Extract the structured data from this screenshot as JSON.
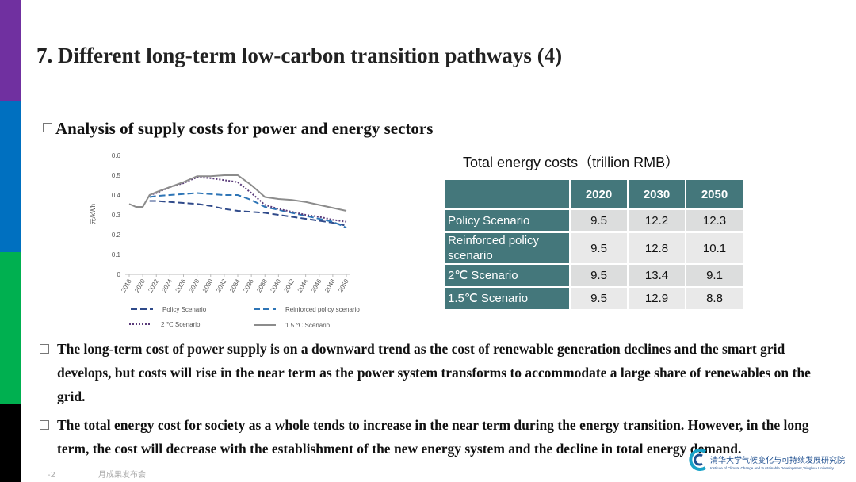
{
  "header": {
    "title": "7. Different long-term low-carbon transition pathways (4)",
    "subtitle": "Analysis of supply costs for power and energy sectors"
  },
  "chart_data": {
    "type": "line",
    "y_label": "元/kWh",
    "x": [
      2018,
      2019,
      2020,
      2021,
      2022,
      2024,
      2026,
      2028,
      2030,
      2032,
      2034,
      2036,
      2038,
      2040,
      2042,
      2044,
      2046,
      2048,
      2050
    ],
    "xlim": [
      2018,
      2050
    ],
    "xticks": [
      2018,
      2020,
      2022,
      2024,
      2026,
      2028,
      2030,
      2032,
      2034,
      2036,
      2038,
      2040,
      2042,
      2044,
      2046,
      2048,
      2050
    ],
    "ylim": [
      0,
      0.6
    ],
    "yticks": [
      0,
      0.1,
      0.2,
      0.3,
      0.4,
      0.5,
      0.6
    ],
    "series": [
      {
        "name": "Policy Scenario",
        "color": "#2f4a8a",
        "style": "dashed",
        "values": [
          null,
          null,
          null,
          0.37,
          0.37,
          0.365,
          0.36,
          0.355,
          0.345,
          0.33,
          0.32,
          0.315,
          0.31,
          0.3,
          0.29,
          0.28,
          0.27,
          0.26,
          0.245
        ]
      },
      {
        "name": "Reinforced policy scenario",
        "color": "#2e75b6",
        "style": "dashed",
        "values": [
          null,
          null,
          null,
          0.39,
          0.395,
          0.4,
          0.405,
          0.41,
          0.405,
          0.4,
          0.4,
          0.375,
          0.34,
          0.325,
          0.31,
          0.295,
          0.28,
          0.265,
          0.235
        ]
      },
      {
        "name": "2 ℃ Scenario",
        "color": "#5a3b7a",
        "style": "dotted",
        "values": [
          null,
          null,
          null,
          0.4,
          0.41,
          0.44,
          0.46,
          0.49,
          0.485,
          0.475,
          0.465,
          0.41,
          0.35,
          0.33,
          0.315,
          0.3,
          0.29,
          0.275,
          0.265
        ]
      },
      {
        "name": "1.5 ℃ Scenario",
        "color": "#8c8c8c",
        "style": "solid",
        "values": [
          0.355,
          0.34,
          0.34,
          0.4,
          0.415,
          0.44,
          0.465,
          0.495,
          0.495,
          0.5,
          0.5,
          0.45,
          0.39,
          0.38,
          0.375,
          0.365,
          0.35,
          0.335,
          0.32
        ]
      }
    ]
  },
  "table": {
    "title": "Total energy costs（trillion RMB）",
    "columns": [
      "2020",
      "2030",
      "2050"
    ],
    "rows": [
      [
        "Policy Scenario",
        9.5,
        12.2,
        12.3
      ],
      [
        "Reinforced policy scenario",
        9.5,
        12.8,
        10.1
      ],
      [
        "2℃ Scenario",
        9.5,
        13.4,
        9.1
      ],
      [
        "1.5℃ Scenario",
        9.5,
        12.9,
        8.8
      ]
    ]
  },
  "bullets": [
    "The long-term cost of power supply is on a downward trend as the cost of renewable generation declines and the smart grid develops, but costs will rise in the near term as the power system transforms to accommodate a large share of renewables on the grid.",
    "The total energy cost for society as a whole tends to increase in the near term during the energy transition. However, in the long term, the cost will decrease with the establishment of the new energy system and the decline in total energy demand."
  ],
  "footer": {
    "event": "-2",
    "event_rest": "月成果发布会"
  },
  "logo": {
    "name": "清华大学气候变化与可持续发展研究院",
    "name_en": "Institute of Climate Change and Sustainable Development,Tsinghua University"
  }
}
